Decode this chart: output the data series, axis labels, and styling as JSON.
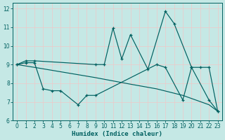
{
  "bg_color": "#c5e8e5",
  "grid_color": "#f0c8c8",
  "line_color": "#006060",
  "xlabel": "Humidex (Indice chaleur)",
  "xlim": [
    -0.5,
    23.5
  ],
  "ylim": [
    6,
    12.3
  ],
  "xticks": [
    0,
    1,
    2,
    3,
    4,
    5,
    6,
    7,
    8,
    9,
    10,
    11,
    12,
    13,
    14,
    15,
    16,
    17,
    18,
    19,
    20,
    21,
    22,
    23
  ],
  "yticks": [
    6,
    7,
    8,
    9,
    10,
    11,
    12
  ],
  "s1_x": [
    0,
    1,
    2,
    9,
    10,
    11,
    12,
    13,
    15,
    17,
    18,
    20,
    21,
    22,
    23
  ],
  "s1_y": [
    9.0,
    9.2,
    9.2,
    9.0,
    9.0,
    10.95,
    9.3,
    10.6,
    8.75,
    11.85,
    11.2,
    8.85,
    8.85,
    8.85,
    6.5
  ],
  "s2_x": [
    0,
    1,
    2,
    3,
    4,
    5,
    7,
    8,
    9,
    16,
    17,
    19,
    20,
    22,
    23
  ],
  "s2_y": [
    9.0,
    9.1,
    9.1,
    7.7,
    7.6,
    7.6,
    6.85,
    7.35,
    7.35,
    9.0,
    8.85,
    7.1,
    8.85,
    7.1,
    6.5
  ],
  "s3_x": [
    0,
    2,
    9,
    13,
    16,
    19,
    22,
    23
  ],
  "s3_y": [
    9.0,
    8.85,
    8.3,
    7.95,
    7.7,
    7.35,
    6.85,
    6.5
  ],
  "lw": 0.85,
  "ms": 3.5,
  "mew": 0.9,
  "tick_fs": 5.5,
  "xlabel_fs": 6.5
}
